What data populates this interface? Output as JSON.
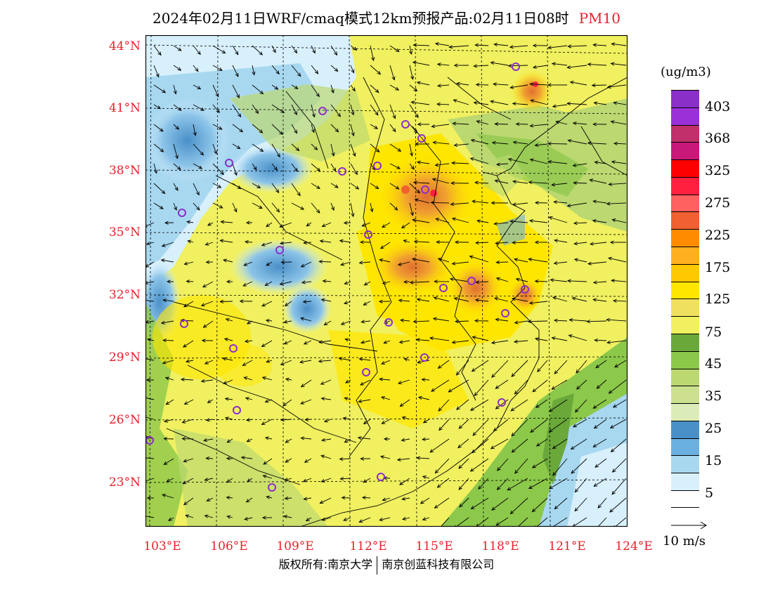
{
  "title": {
    "main": "2024年02月11日WRF/cmaq模式12km预报产品:02月11日08时",
    "variable": "PM10"
  },
  "map": {
    "lat_labels": [
      "44°N",
      "41°N",
      "38°N",
      "35°N",
      "32°N",
      "29°N",
      "26°N",
      "23°N"
    ],
    "lon_labels": [
      "103°E",
      "106°E",
      "109°E",
      "112°E",
      "115°E",
      "118°E",
      "121°E",
      "124°E"
    ],
    "lat_range": [
      21,
      44.5
    ],
    "lon_range": [
      102.7,
      124
    ]
  },
  "legend": {
    "unit": "(ug/m3)",
    "labels": [
      "403",
      "368",
      "325",
      "275",
      "225",
      "175",
      "125",
      "75",
      "45",
      "35",
      "25",
      "15",
      "5"
    ],
    "colors": [
      "#8b2fc9",
      "#9b30d9",
      "#c0306a",
      "#c8187a",
      "#ff0000",
      "#ff2040",
      "#ff6060",
      "#f06030",
      "#ff8c00",
      "#ffb020",
      "#ffc800",
      "#ffe600",
      "#f0e060",
      "#f0f060",
      "#6aa83a",
      "#8cc84a",
      "#bcd870",
      "#cce090",
      "#dcecb8",
      "#4a90c8",
      "#6ab0e0",
      "#a8d8f0",
      "#d8f0fc",
      "#ffffff"
    ]
  },
  "wind_reference": "10 m/s",
  "colors": {
    "label_red": "#e8202a"
  },
  "copyright": {
    "left": "版权所有:南京大学",
    "right": "南京创蓝科技有限公司"
  }
}
